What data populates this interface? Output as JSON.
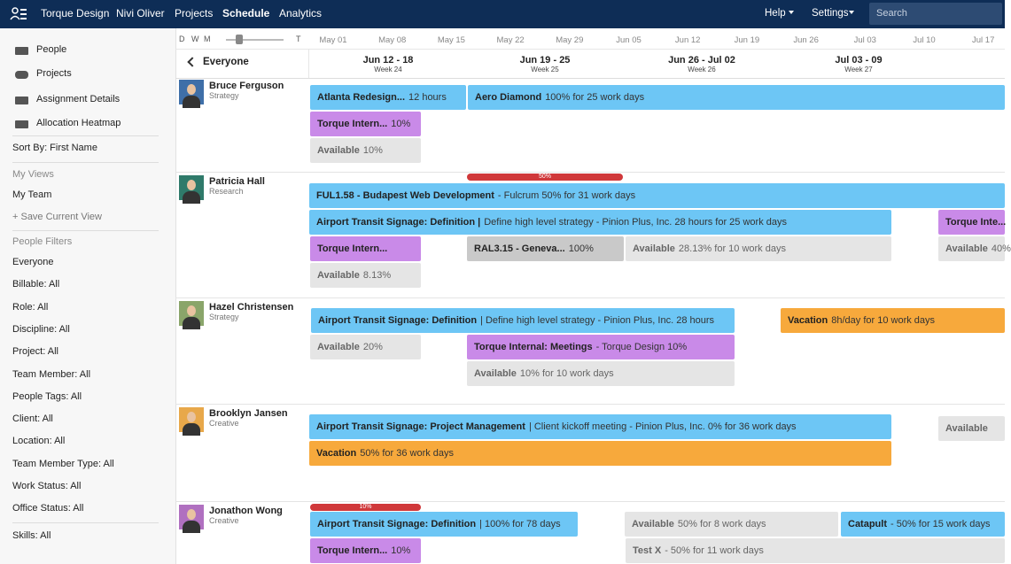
{
  "nav": {
    "items": [
      "Torque Design",
      "Nivi Oliver",
      "Projects",
      "Schedule",
      "Analytics"
    ],
    "help": "Help",
    "settings": "Settings",
    "search": "Search"
  },
  "sidebar": {
    "nav": [
      "People",
      "Projects",
      "Assignment Details",
      "Allocation Heatmap"
    ],
    "sort": "Sort By: First Name",
    "views_heading": "My Views",
    "views": [
      "My Team",
      "+ Save Current View"
    ],
    "filters_heading": "People Filters",
    "filters": [
      "Everyone",
      "Billable: All",
      "Role: All",
      "Discipline: All",
      "Project: All",
      "Team Member: All",
      "People Tags: All",
      "Client: All",
      "Location: All",
      "Team Member Type: All",
      "Work Status: All",
      "Office Status: All"
    ],
    "skills": "Skills: All"
  },
  "timeline": {
    "zoom": [
      "D",
      "W",
      "M"
    ],
    "zoom_end": "T",
    "dates": [
      "May 01",
      "May 08",
      "May 15",
      "May 22",
      "May 29",
      "Jun 05",
      "Jun 12",
      "Jun 19",
      "Jun 26",
      "Jul 03",
      "Jul 10",
      "Jul 17"
    ],
    "group": "Everyone",
    "weeks": [
      {
        "range": "Jun 12 - 18",
        "label": "Week 24"
      },
      {
        "range": "Jun 19 - 25",
        "label": "Week 25"
      },
      {
        "range": "Jun 26 - Jul 02",
        "label": "Week 26"
      },
      {
        "range": "Jul 03 - 09",
        "label": "Week 27"
      }
    ]
  },
  "people": [
    {
      "name": "Bruce Ferguson",
      "role": "Strategy",
      "overload": [],
      "bars": [
        {
          "title": "Atlanta Redesign...",
          "detail": "12 hours",
          "kind": "blue"
        },
        {
          "title": "Aero Diamond",
          "detail": "100% for 25 work days",
          "kind": "blue"
        },
        {
          "title": "Torque Intern...",
          "detail": "10%",
          "kind": "purple"
        },
        {
          "title": "Available",
          "detail": "10%",
          "kind": "gray"
        }
      ]
    },
    {
      "name": "Patricia Hall",
      "role": "Research",
      "overload": [
        "50%"
      ],
      "bars": [
        {
          "title": "FUL1.58 - Budapest Web Development",
          "detail": "- Fulcrum 50% for 31 work days",
          "kind": "blue"
        },
        {
          "title": "Airport Transit Signage: Definition |",
          "detail": "Define high level strategy - Pinion Plus, Inc. 28 hours for 25 work days",
          "kind": "blue"
        },
        {
          "title": "Torque Inte...",
          "kind": "purple"
        },
        {
          "title": "Torque Intern...",
          "kind": "purple"
        },
        {
          "title": "RAL3.15 - Geneva...",
          "detail": "100%",
          "kind": "dark"
        },
        {
          "title": "Available",
          "detail": "28.13% for 10 work days",
          "kind": "gray"
        },
        {
          "title": "Available",
          "detail": "40%",
          "kind": "gray"
        },
        {
          "title": "Available",
          "detail": "8.13%",
          "kind": "gray"
        }
      ]
    },
    {
      "name": "Hazel Christensen",
      "role": "Strategy",
      "overload": [],
      "bars": [
        {
          "title": "Airport Transit Signage: Definition",
          "detail": "| Define high level strategy - Pinion Plus, Inc. 28 hours",
          "kind": "blue"
        },
        {
          "title": "Vacation",
          "detail": "8h/day for 10 work days",
          "kind": "orange"
        },
        {
          "title": "Available",
          "detail": "20%",
          "kind": "gray"
        },
        {
          "title": "Torque Internal: Meetings",
          "detail": "- Torque Design 10%",
          "kind": "purple"
        },
        {
          "title": "Available",
          "detail": "10% for 10 work days",
          "kind": "gray"
        }
      ]
    },
    {
      "name": "Brooklyn Jansen",
      "role": "Creative",
      "overload": [],
      "bars": [
        {
          "title": "Airport Transit Signage: Project Management",
          "detail": "| Client kickoff meeting - Pinion Plus, Inc. 0% for 36 work days",
          "kind": "blue"
        },
        {
          "title": "Available",
          "kind": "gray"
        },
        {
          "title": "Vacation",
          "detail": "50% for 36 work days",
          "kind": "orange"
        }
      ]
    },
    {
      "name": "Jonathon Wong",
      "role": "Creative",
      "overload": [
        "10%"
      ],
      "bars": [
        {
          "title": "Airport Transit Signage: Definition",
          "detail": "| 100% for 78 days",
          "kind": "blue"
        },
        {
          "title": "Available",
          "detail": "50% for 8 work days",
          "kind": "gray"
        },
        {
          "title": "Catapult",
          "detail": "- 50% for 15 work days",
          "kind": "blue"
        },
        {
          "title": "Torque Intern...",
          "detail": "10%",
          "kind": "purple"
        },
        {
          "title": "Test X",
          "detail": "- 50% for 11 work days",
          "kind": "gray"
        }
      ]
    }
  ]
}
